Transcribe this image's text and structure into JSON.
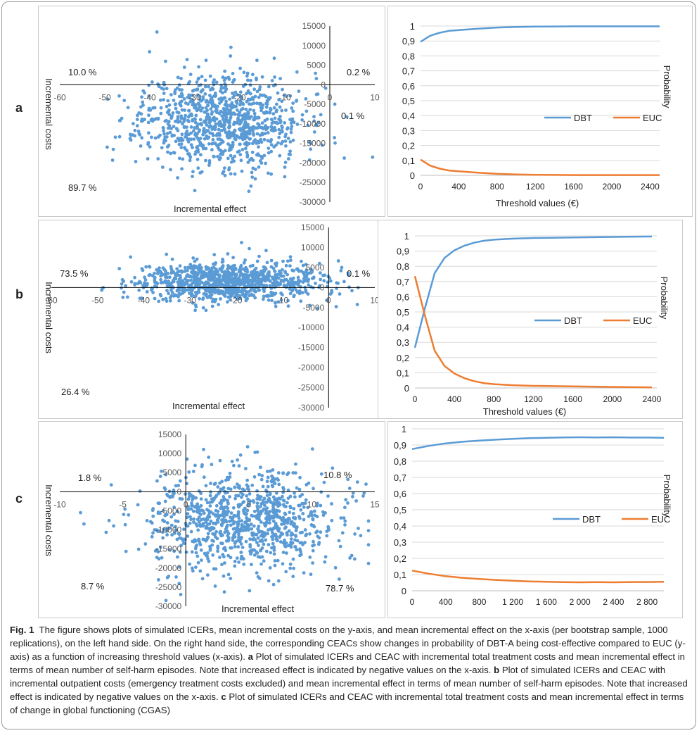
{
  "panel_letters": [
    "a",
    "b",
    "c"
  ],
  "chart_data": [
    {
      "panel": "a",
      "type": "scatter",
      "title": "",
      "xlabel": "Incremental effect",
      "ylabel": "Incremental costs",
      "xlim": [
        -60,
        10
      ],
      "ylim": [
        -30000,
        15000
      ],
      "x_ticks": [
        -60,
        -50,
        -40,
        -30,
        -20,
        -10,
        0,
        10
      ],
      "y_ticks": [
        15000,
        10000,
        5000,
        0,
        -5000,
        -10000,
        -15000,
        -20000,
        -25000,
        -30000
      ],
      "quadrant_labels": {
        "top_left": "10.0 %",
        "top_right": "0.2 %",
        "bottom_right": "0.1 %",
        "bottom_left": "89.7 %"
      },
      "marker_color": "#5B9BD5",
      "points": {
        "count": 1000,
        "x_mean": -24,
        "x_sd": 9,
        "y_mean": -9000,
        "y_sd": 6000,
        "seed": 11
      }
    },
    {
      "panel": "a",
      "type": "line",
      "xlabel": "Threshold values (€)",
      "ylabel": "Probability",
      "xlim": [
        0,
        2500
      ],
      "ylim": [
        0,
        1
      ],
      "x_ticks": [
        0,
        400,
        800,
        1200,
        1600,
        2000,
        2400
      ],
      "y_ticks": [
        "0",
        "0,1",
        "0,2",
        "0,3",
        "0,4",
        "0,5",
        "0,6",
        "0,7",
        "0,8",
        "0,9",
        "1"
      ],
      "legend_position": "right-middle",
      "series": [
        {
          "name": "DBT",
          "color": "#5B9BD5",
          "x": [
            0,
            100,
            200,
            300,
            400,
            500,
            600,
            800,
            1000,
            1200,
            1400,
            1600,
            2000,
            2500
          ],
          "y": [
            0.895,
            0.935,
            0.955,
            0.968,
            0.973,
            0.978,
            0.982,
            0.99,
            0.994,
            0.996,
            0.997,
            0.998,
            0.998,
            0.998
          ]
        },
        {
          "name": "EUC",
          "color": "#ED7D31",
          "x": [
            0,
            100,
            200,
            300,
            400,
            500,
            600,
            800,
            1000,
            1200,
            1400,
            1600,
            2000,
            2500
          ],
          "y": [
            0.105,
            0.065,
            0.045,
            0.032,
            0.027,
            0.022,
            0.018,
            0.01,
            0.006,
            0.004,
            0.003,
            0.002,
            0.002,
            0.002
          ]
        }
      ]
    },
    {
      "panel": "b",
      "type": "scatter",
      "title": "",
      "xlabel": "Incremental effect",
      "ylabel": "Incremental costs",
      "xlim": [
        -60,
        10
      ],
      "ylim": [
        -30000,
        15000
      ],
      "x_ticks": [
        -60,
        -50,
        -40,
        -30,
        -20,
        -10,
        0,
        10
      ],
      "y_ticks": [
        15000,
        10000,
        5000,
        0,
        -5000,
        -10000,
        -15000,
        -20000,
        -25000,
        -30000
      ],
      "quadrant_labels": {
        "top_left": "73.5 %",
        "top_right": "0.1 %",
        "bottom_left": "26.4 %"
      },
      "marker_color": "#5B9BD5",
      "points": {
        "count": 1000,
        "x_mean": -22,
        "x_sd": 10,
        "y_mean": 1500,
        "y_sd": 2400,
        "seed": 29
      }
    },
    {
      "panel": "b",
      "type": "line",
      "xlabel": "Threshold values (€)",
      "ylabel": "Probability",
      "xlim": [
        0,
        2450
      ],
      "ylim": [
        0,
        1
      ],
      "x_ticks": [
        0,
        400,
        800,
        1200,
        1600,
        2000,
        2400
      ],
      "y_ticks": [
        "0",
        "0,1",
        "0,2",
        "0,3",
        "0,4",
        "0,5",
        "0,6",
        "0,7",
        "0,8",
        "0,9",
        "1"
      ],
      "legend_position": "right-middle",
      "series": [
        {
          "name": "DBT",
          "color": "#5B9BD5",
          "x": [
            0,
            100,
            200,
            300,
            400,
            500,
            600,
            700,
            800,
            1000,
            1200,
            1600,
            2000,
            2400
          ],
          "y": [
            0.265,
            0.52,
            0.755,
            0.855,
            0.905,
            0.935,
            0.955,
            0.968,
            0.975,
            0.982,
            0.986,
            0.99,
            0.993,
            0.996
          ]
        },
        {
          "name": "EUC",
          "color": "#ED7D31",
          "x": [
            0,
            100,
            200,
            300,
            400,
            500,
            600,
            700,
            800,
            1000,
            1200,
            1600,
            2000,
            2400
          ],
          "y": [
            0.735,
            0.48,
            0.245,
            0.145,
            0.095,
            0.065,
            0.045,
            0.032,
            0.025,
            0.018,
            0.014,
            0.01,
            0.007,
            0.004
          ]
        }
      ]
    },
    {
      "panel": "c",
      "type": "scatter",
      "title": "",
      "xlabel": "Incremental effect",
      "ylabel": "Incremental costs",
      "xlim": [
        -10,
        15
      ],
      "ylim": [
        -30000,
        15000
      ],
      "x_ticks": [
        -10,
        -5,
        0,
        5,
        10,
        15
      ],
      "y_ticks": [
        15000,
        10000,
        5000,
        0,
        -5000,
        -10000,
        -15000,
        -20000,
        -25000,
        -30000
      ],
      "quadrant_labels": {
        "top_left": "1.8 %",
        "top_right": "10.8 %",
        "bottom_left": "8.7 %",
        "bottom_right": "78.7 %"
      },
      "marker_color": "#5B9BD5",
      "points": {
        "count": 1000,
        "x_mean": 4.5,
        "x_sd": 3.8,
        "y_mean": -8000,
        "y_sd": 6500,
        "seed": 47
      }
    },
    {
      "panel": "c",
      "type": "line",
      "xlabel": "",
      "ylabel": "Probability",
      "xlim": [
        0,
        3000
      ],
      "ylim": [
        0,
        1
      ],
      "x_ticks": [
        0,
        400,
        800,
        1200,
        1600,
        2000,
        2400,
        2800
      ],
      "x_tick_labels": [
        "0",
        "400",
        "800",
        "1 200",
        "1 600",
        "2 000",
        "2 400",
        "2 800"
      ],
      "y_ticks": [
        "0",
        "0,1",
        "0,2",
        "0,3",
        "0,4",
        "0,5",
        "0,6",
        "0,7",
        "0,8",
        "0,9",
        "1"
      ],
      "legend_position": "right-middle",
      "series": [
        {
          "name": "DBT",
          "color": "#5B9BD5",
          "x": [
            0,
            200,
            400,
            600,
            800,
            1000,
            1200,
            1400,
            1600,
            1800,
            2000,
            2200,
            2400,
            2600,
            2800,
            3000
          ],
          "y": [
            0.875,
            0.895,
            0.91,
            0.92,
            0.927,
            0.933,
            0.938,
            0.942,
            0.945,
            0.947,
            0.948,
            0.947,
            0.948,
            0.946,
            0.946,
            0.945
          ]
        },
        {
          "name": "EUC",
          "color": "#ED7D31",
          "x": [
            0,
            200,
            400,
            600,
            800,
            1000,
            1200,
            1400,
            1600,
            1800,
            2000,
            2200,
            2400,
            2600,
            2800,
            3000
          ],
          "y": [
            0.125,
            0.105,
            0.09,
            0.08,
            0.073,
            0.067,
            0.062,
            0.058,
            0.055,
            0.053,
            0.052,
            0.053,
            0.052,
            0.054,
            0.054,
            0.055
          ]
        }
      ]
    }
  ],
  "caption": {
    "fig_label": "Fig. 1",
    "intro": "The figure shows plots of simulated ICERs, mean incremental costs on the y-axis, and mean incremental effect on the x-axis (per bootstrap sample, 1000 replications), on the left hand side. On the right hand side, the corresponding CEACs show changes in probability of DBT-A being cost-effective compared to EUC (y-axis) as a function of increasing threshold values (x-axis).",
    "a_label": "a",
    "a_text": "Plot of simulated ICERs and CEAC with incremental total treatment costs and mean incremental effect in terms of mean number of self-harm episodes. Note that increased effect is indicated by negative values on the x-axis.",
    "b_label": "b",
    "b_text": "Plot of simulated ICERs and CEAC with incremental outpatient costs (emergency treatment costs excluded) and mean incremental effect in terms of mean number of self-harm episodes. Note that increased effect is indicated by negative values on the x-axis.",
    "c_label": "c",
    "c_text": "Plot of simulated ICERs and CEAC with incremental total treatment costs and mean incremental effect in terms of change in global functioning (CGAS)"
  }
}
